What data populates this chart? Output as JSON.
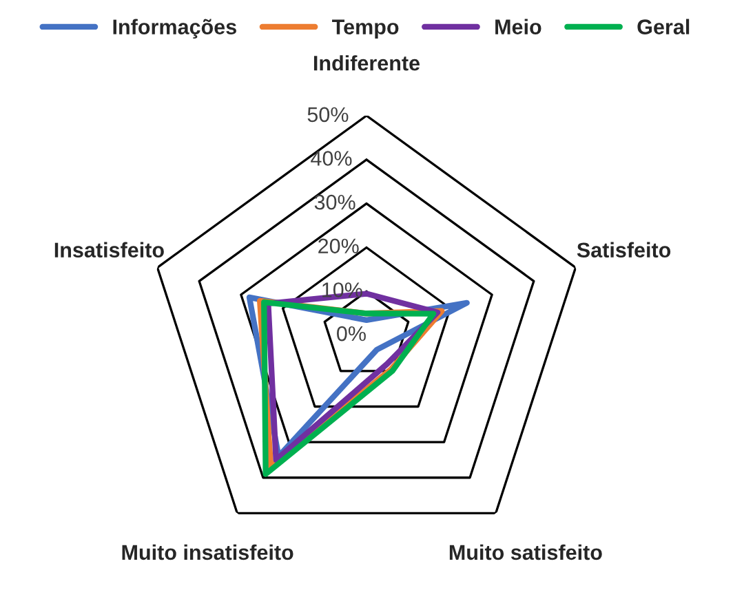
{
  "chart_data": {
    "type": "radar",
    "categories": [
      "Indiferente",
      "Satisfeito",
      "Muito satisfeito",
      "Muito insatisfeito",
      "Insatisfeito"
    ],
    "series": [
      {
        "name": "Informações",
        "color": "#4472c4",
        "values": [
          3.5,
          24,
          4,
          34,
          28
        ]
      },
      {
        "name": "Tempo",
        "color": "#ed7d31",
        "values": [
          5,
          18,
          9.5,
          37,
          25.5
        ]
      },
      {
        "name": "Meio",
        "color": "#7030a0",
        "values": [
          9.5,
          17,
          8,
          35,
          23.5
        ]
      },
      {
        "name": "Geral",
        "color": "#00b050",
        "values": [
          5,
          16,
          10,
          39,
          24.5
        ]
      }
    ],
    "ylim": [
      0,
      50
    ],
    "yticks": [
      {
        "value": 0,
        "label": "0%"
      },
      {
        "value": 10,
        "label": "10%"
      },
      {
        "value": 20,
        "label": "20%"
      },
      {
        "value": 30,
        "label": "30%"
      },
      {
        "value": 40,
        "label": "40%"
      },
      {
        "value": 50,
        "label": "50%"
      }
    ],
    "grid": true,
    "legend": "top"
  }
}
